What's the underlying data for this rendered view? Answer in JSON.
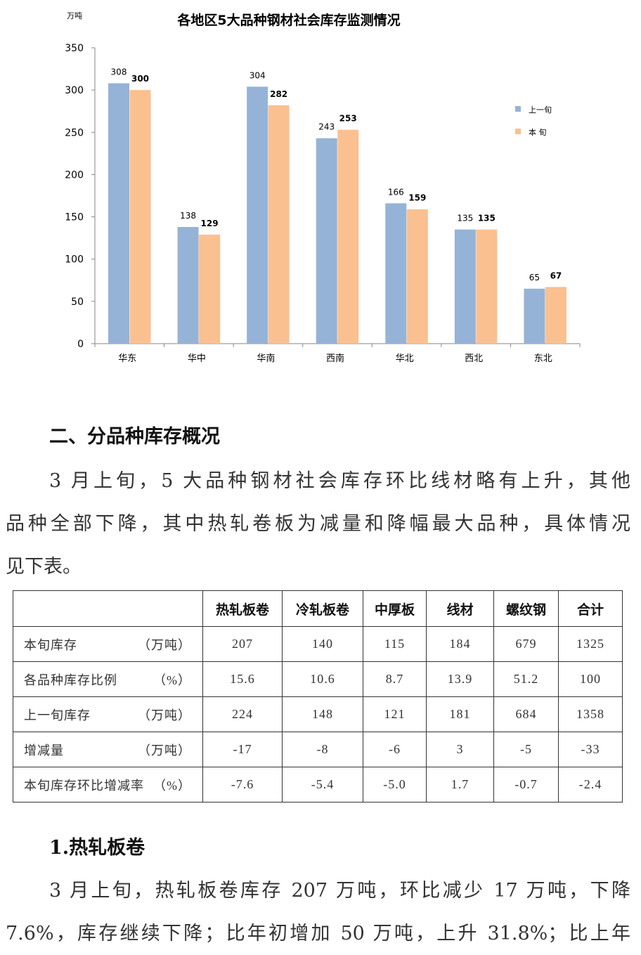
{
  "chart_data": {
    "type": "bar",
    "title": "各地区5大品种钢材社会库存监测情况",
    "unit_label": "万吨",
    "categories": [
      "华东",
      "华中",
      "华南",
      "西南",
      "华北",
      "西北",
      "东北"
    ],
    "series": [
      {
        "name": "上一旬",
        "color": "#95B3D7",
        "values": [
          308,
          138,
          304,
          243,
          166,
          135,
          65
        ]
      },
      {
        "name": "本 旬",
        "color": "#FAC090",
        "values": [
          300,
          129,
          282,
          253,
          159,
          135,
          67
        ]
      }
    ],
    "ylim": [
      0,
      350
    ],
    "yticks": [
      0,
      50,
      100,
      150,
      200,
      250,
      300,
      350
    ],
    "grid": false,
    "legend": "right"
  },
  "section2": {
    "heading": "二、分品种库存概况",
    "lines": [
      "3 月上旬，5 大品种钢材社会库存环比线材略有上升，其他",
      "品种全部下降，其中热轧卷板为减量和降幅最大品种，具体情况",
      "见下表。"
    ]
  },
  "table": {
    "header": [
      "热轧板卷",
      "冷轧板卷",
      "中厚板",
      "线材",
      "螺纹钢",
      "合计"
    ],
    "rows": [
      {
        "label": "本旬库存",
        "unit": "（万吨）",
        "values": [
          "207",
          "140",
          "115",
          "184",
          "679",
          "1325"
        ]
      },
      {
        "label": "各品种库存比例",
        "unit": "（%）",
        "values": [
          "15.6",
          "10.6",
          "8.7",
          "13.9",
          "51.2",
          "100"
        ]
      },
      {
        "label": "上一旬库存",
        "unit": "（万吨）",
        "values": [
          "224",
          "148",
          "121",
          "181",
          "684",
          "1358"
        ]
      },
      {
        "label": "增减量",
        "unit": "（万吨）",
        "values": [
          "-17",
          "-8",
          "-6",
          "3",
          "-5",
          "-33"
        ]
      },
      {
        "label": "本旬库存环比增减率",
        "unit": "（%）",
        "values": [
          "-7.6",
          "-5.4",
          "-5.0",
          "1.7",
          "-0.7",
          "-2.4"
        ]
      }
    ]
  },
  "section_hrc": {
    "heading": "1.热轧板卷",
    "lines": [
      "3 月上旬，热轧板卷库存 207 万吨，环比减少 17 万吨，下降",
      "7.6%，库存继续下降；比年初增加 50 万吨，上升 31.8%；比上年"
    ]
  }
}
